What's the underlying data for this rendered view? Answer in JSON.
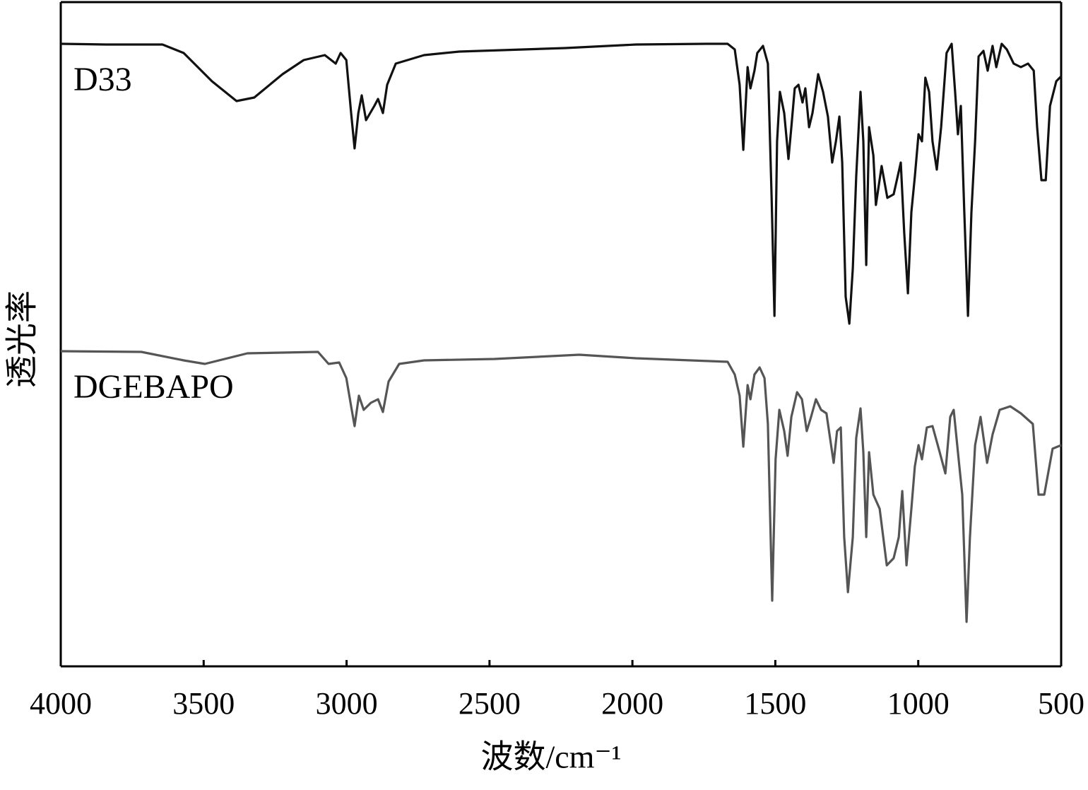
{
  "chart_data": {
    "type": "line",
    "xlabel": "波数/cm⁻¹",
    "ylabel": "透光率",
    "xlim": [
      4000,
      500
    ],
    "xticks": [
      4000,
      3500,
      3000,
      2500,
      2000,
      1500,
      1000,
      500
    ],
    "ylim": [
      0,
      940
    ],
    "series": [
      {
        "name": "D33",
        "color": "#111111",
        "x": [
          4000,
          3842,
          3644,
          3570,
          3471,
          3385,
          3323,
          3224,
          3150,
          3076,
          3038,
          3021,
          3001,
          2984,
          2972,
          2959,
          2947,
          2932,
          2903,
          2890,
          2873,
          2858,
          2828,
          2729,
          2606,
          2235,
          1988,
          1741,
          1667,
          1642,
          1625,
          1612,
          1597,
          1587,
          1573,
          1563,
          1543,
          1526,
          1513,
          1503,
          1494,
          1484,
          1469,
          1454,
          1444,
          1432,
          1419,
          1405,
          1395,
          1382,
          1370,
          1350,
          1333,
          1316,
          1301,
          1288,
          1276,
          1266,
          1254,
          1241,
          1229,
          1217,
          1202,
          1192,
          1182,
          1172,
          1157,
          1148,
          1128,
          1108,
          1086,
          1061,
          1049,
          1036,
          1024,
          1012,
          999,
          987,
          975,
          962,
          950,
          935,
          920,
          901,
          883,
          871,
          861,
          851,
          839,
          826,
          814,
          801,
          789,
          772,
          757,
          740,
          727,
          708,
          690,
          666,
          641,
          616,
          596,
          584,
          569,
          554,
          539,
          517,
          500
        ],
        "values": [
          881,
          880,
          880,
          868,
          828,
          800,
          805,
          838,
          858,
          865,
          853,
          868,
          858,
          783,
          733,
          783,
          808,
          773,
          793,
          803,
          783,
          823,
          853,
          865,
          870,
          875,
          880,
          881,
          881,
          873,
          823,
          731,
          848,
          818,
          843,
          868,
          878,
          853,
          663,
          496,
          743,
          813,
          783,
          718,
          763,
          818,
          823,
          798,
          818,
          763,
          783,
          838,
          813,
          778,
          713,
          743,
          778,
          713,
          523,
          485,
          563,
          693,
          813,
          743,
          568,
          763,
          723,
          653,
          708,
          663,
          668,
          713,
          613,
          528,
          643,
          693,
          753,
          743,
          833,
          813,
          743,
          703,
          763,
          868,
          881,
          813,
          753,
          793,
          643,
          496,
          643,
          743,
          863,
          871,
          843,
          878,
          848,
          881,
          873,
          853,
          848,
          853,
          843,
          763,
          688,
          688,
          793,
          828,
          835
        ]
      },
      {
        "name": "DGEBAPO",
        "color": "#555555",
        "x": [
          4000,
          3718,
          3570,
          3496,
          3347,
          3100,
          3063,
          3026,
          3001,
          2984,
          2972,
          2957,
          2940,
          2915,
          2890,
          2873,
          2853,
          2816,
          2729,
          2482,
          2186,
          1988,
          1667,
          1642,
          1625,
          1612,
          1597,
          1587,
          1573,
          1555,
          1538,
          1526,
          1511,
          1499,
          1486,
          1469,
          1457,
          1444,
          1424,
          1407,
          1390,
          1375,
          1358,
          1340,
          1321,
          1296,
          1284,
          1271,
          1259,
          1246,
          1229,
          1217,
          1202,
          1192,
          1182,
          1172,
          1157,
          1135,
          1110,
          1086,
          1068,
          1056,
          1041,
          1024,
          1012,
          999,
          987,
          970,
          950,
          925,
          905,
          888,
          876,
          861,
          846,
          831,
          819,
          801,
          782,
          759,
          740,
          715,
          678,
          641,
          599,
          579,
          559,
          530,
          500
        ],
        "values": [
          446,
          445,
          433,
          428,
          443,
          445,
          428,
          430,
          408,
          368,
          340,
          383,
          363,
          373,
          378,
          360,
          403,
          428,
          433,
          435,
          441,
          436,
          431,
          413,
          383,
          311,
          398,
          378,
          413,
          423,
          408,
          343,
          93,
          293,
          363,
          333,
          298,
          353,
          388,
          378,
          333,
          353,
          378,
          363,
          358,
          288,
          333,
          338,
          183,
          105,
          183,
          323,
          365,
          303,
          183,
          303,
          243,
          223,
          143,
          153,
          183,
          248,
          143,
          223,
          283,
          313,
          293,
          338,
          340,
          303,
          273,
          353,
          363,
          303,
          243,
          63,
          183,
          313,
          353,
          288,
          328,
          363,
          368,
          358,
          343,
          243,
          243,
          308,
          313
        ]
      }
    ]
  }
}
